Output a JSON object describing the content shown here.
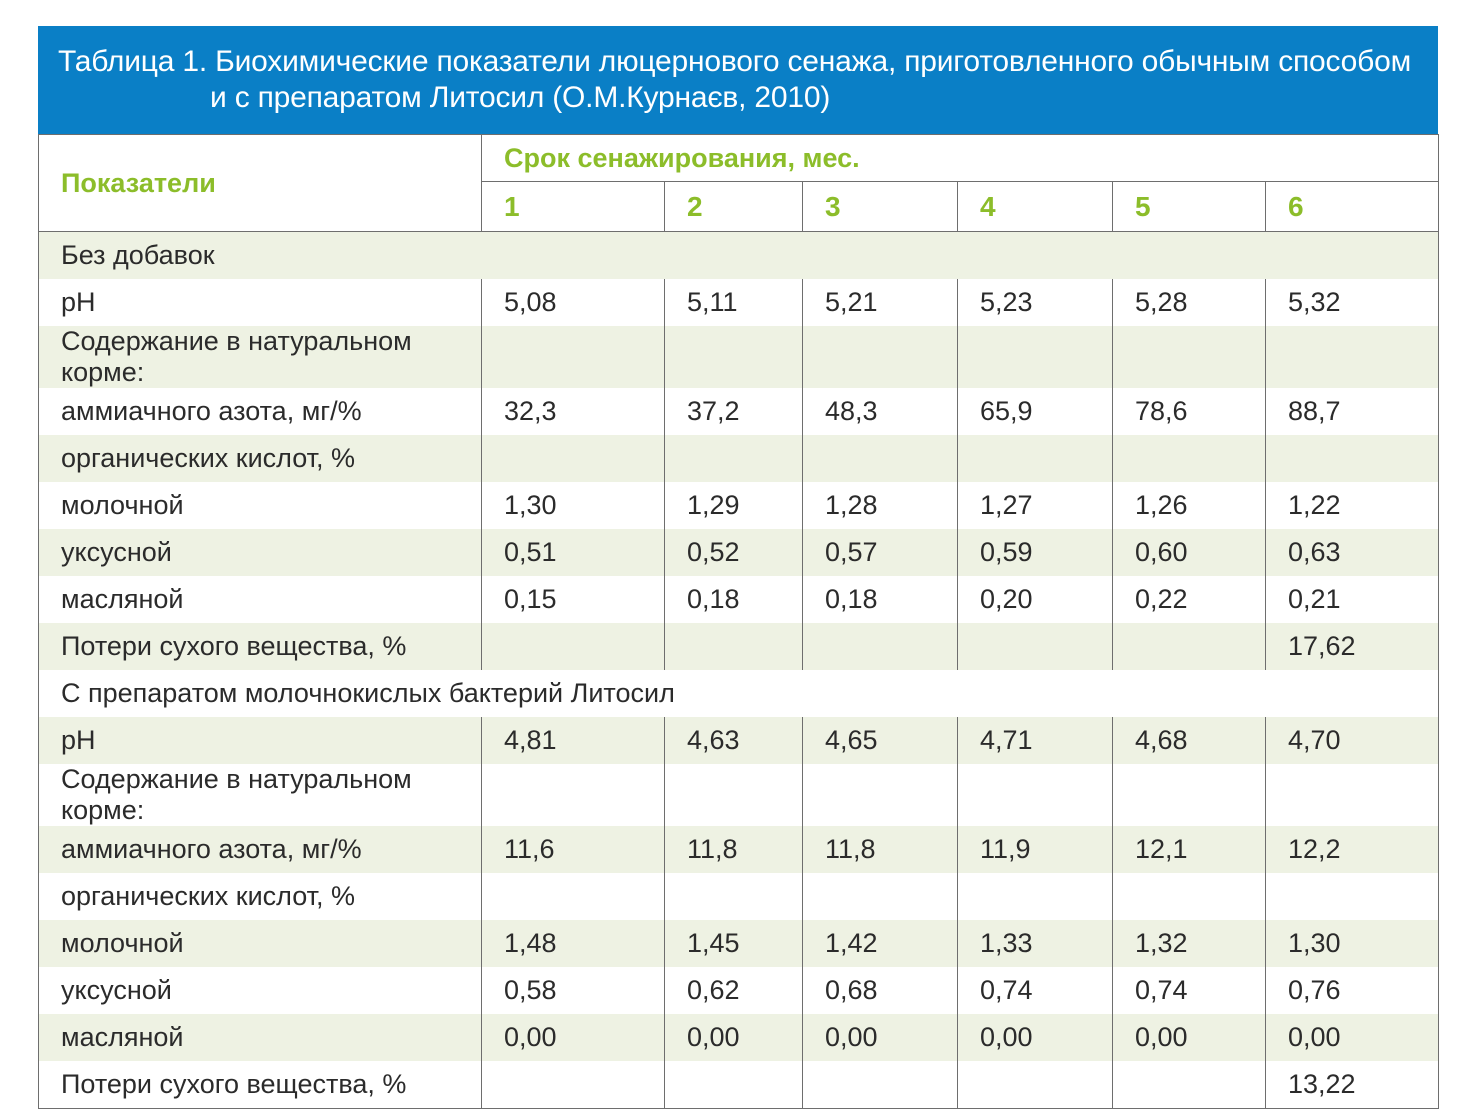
{
  "title": {
    "line1": "Таблица 1. Биохимические показатели люцернового сенажа, приготовленного обычным способом",
    "line2": "и с препаратом Литосил (О.М.Курнаєв, 2010)"
  },
  "header": {
    "indicator": "Показатели",
    "period": "Срок сенажирования, мес.",
    "months": [
      "1",
      "2",
      "3",
      "4",
      "5",
      "6"
    ]
  },
  "section1": {
    "title": "Без добавок",
    "rows": [
      {
        "label": "pH",
        "values": [
          "5,08",
          "5,11",
          "5,21",
          "5,23",
          "5,28",
          "5,32"
        ]
      },
      {
        "label": "Содержание в натуральном корме:",
        "values": [
          "",
          "",
          "",
          "",
          "",
          ""
        ]
      },
      {
        "label": "аммиачного азота, мг/%",
        "values": [
          "32,3",
          "37,2",
          "48,3",
          "65,9",
          "78,6",
          "88,7"
        ]
      },
      {
        "label": "органических кислот, %",
        "values": [
          "",
          "",
          "",
          "",
          "",
          ""
        ]
      },
      {
        "label": "молочной",
        "values": [
          "1,30",
          "1,29",
          "1,28",
          "1,27",
          "1,26",
          "1,22"
        ]
      },
      {
        "label": "уксусной",
        "values": [
          "0,51",
          "0,52",
          "0,57",
          "0,59",
          "0,60",
          "0,63"
        ]
      },
      {
        "label": "масляной",
        "values": [
          "0,15",
          "0,18",
          "0,18",
          "0,20",
          "0,22",
          "0,21"
        ]
      },
      {
        "label": "Потери сухого вещества, %",
        "values": [
          "",
          "",
          "",
          "",
          "",
          "17,62"
        ]
      }
    ]
  },
  "section2": {
    "title": "С препаратом молочнокислых бактерий Литосил",
    "rows": [
      {
        "label": "pH",
        "values": [
          "4,81",
          "4,63",
          "4,65",
          "4,71",
          "4,68",
          "4,70"
        ]
      },
      {
        "label": "Содержание в натуральном корме:",
        "values": [
          "",
          "",
          "",
          "",
          "",
          ""
        ]
      },
      {
        "label": "аммиачного азота, мг/%",
        "values": [
          "11,6",
          "11,8",
          "11,8",
          "11,9",
          "12,1",
          "12,2"
        ]
      },
      {
        "label": "органических кислот, %",
        "values": [
          "",
          "",
          "",
          "",
          "",
          ""
        ]
      },
      {
        "label": "молочной",
        "values": [
          "1,48",
          "1,45",
          "1,42",
          "1,33",
          "1,32",
          "1,30"
        ]
      },
      {
        "label": "уксусной",
        "values": [
          "0,58",
          "0,62",
          "0,68",
          "0,74",
          "0,74",
          "0,76"
        ]
      },
      {
        "label": "масляной",
        "values": [
          "0,00",
          "0,00",
          "0,00",
          "0,00",
          "0,00",
          "0,00"
        ]
      },
      {
        "label": "Потери сухого вещества, %",
        "values": [
          "",
          "",
          "",
          "",
          "",
          "13,22"
        ]
      }
    ]
  },
  "colors": {
    "title_bar": "#0a7fc6",
    "header_text": "#8cbd2a",
    "shaded_row": "#eef2e3"
  }
}
